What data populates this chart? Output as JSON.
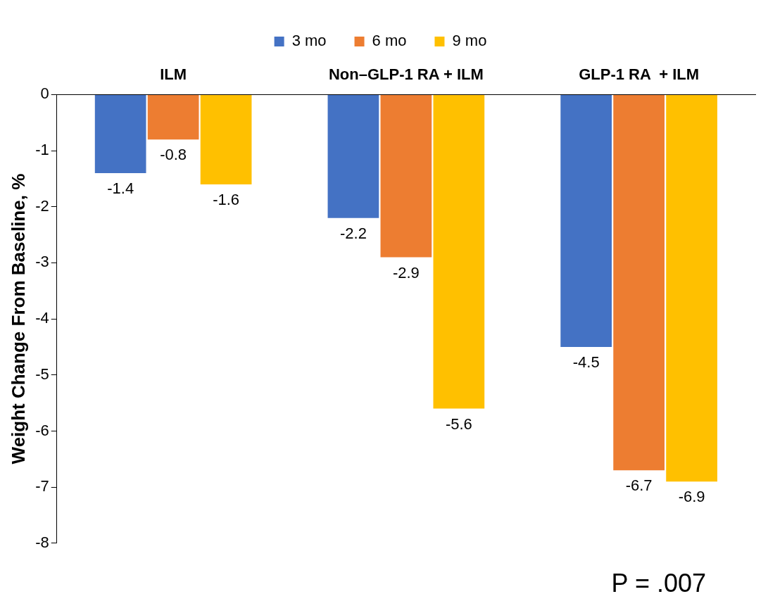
{
  "chart_data": {
    "type": "bar",
    "ylabel": "Weight Change From Baseline, %",
    "categories": [
      "ILM",
      "Non–GLP-1 RA + ILM",
      "GLP-1 RA  + ILM"
    ],
    "series": [
      {
        "name": "3 mo",
        "color": "#4472c4",
        "values": [
          -1.4,
          -2.2,
          -4.5
        ]
      },
      {
        "name": "6 mo",
        "color": "#ed7d31",
        "values": [
          -0.8,
          -2.9,
          -6.7
        ]
      },
      {
        "name": "9 mo",
        "color": "#ffc000",
        "values": [
          -1.6,
          -5.6,
          -6.9
        ]
      }
    ],
    "ylim": [
      -8,
      0
    ],
    "yticks": [
      -8,
      -7,
      -6,
      -5,
      -4,
      -3,
      -2,
      -1,
      0
    ],
    "grid": false,
    "legend": "top",
    "data_labels": true,
    "annotations": [
      "P = .007"
    ]
  }
}
